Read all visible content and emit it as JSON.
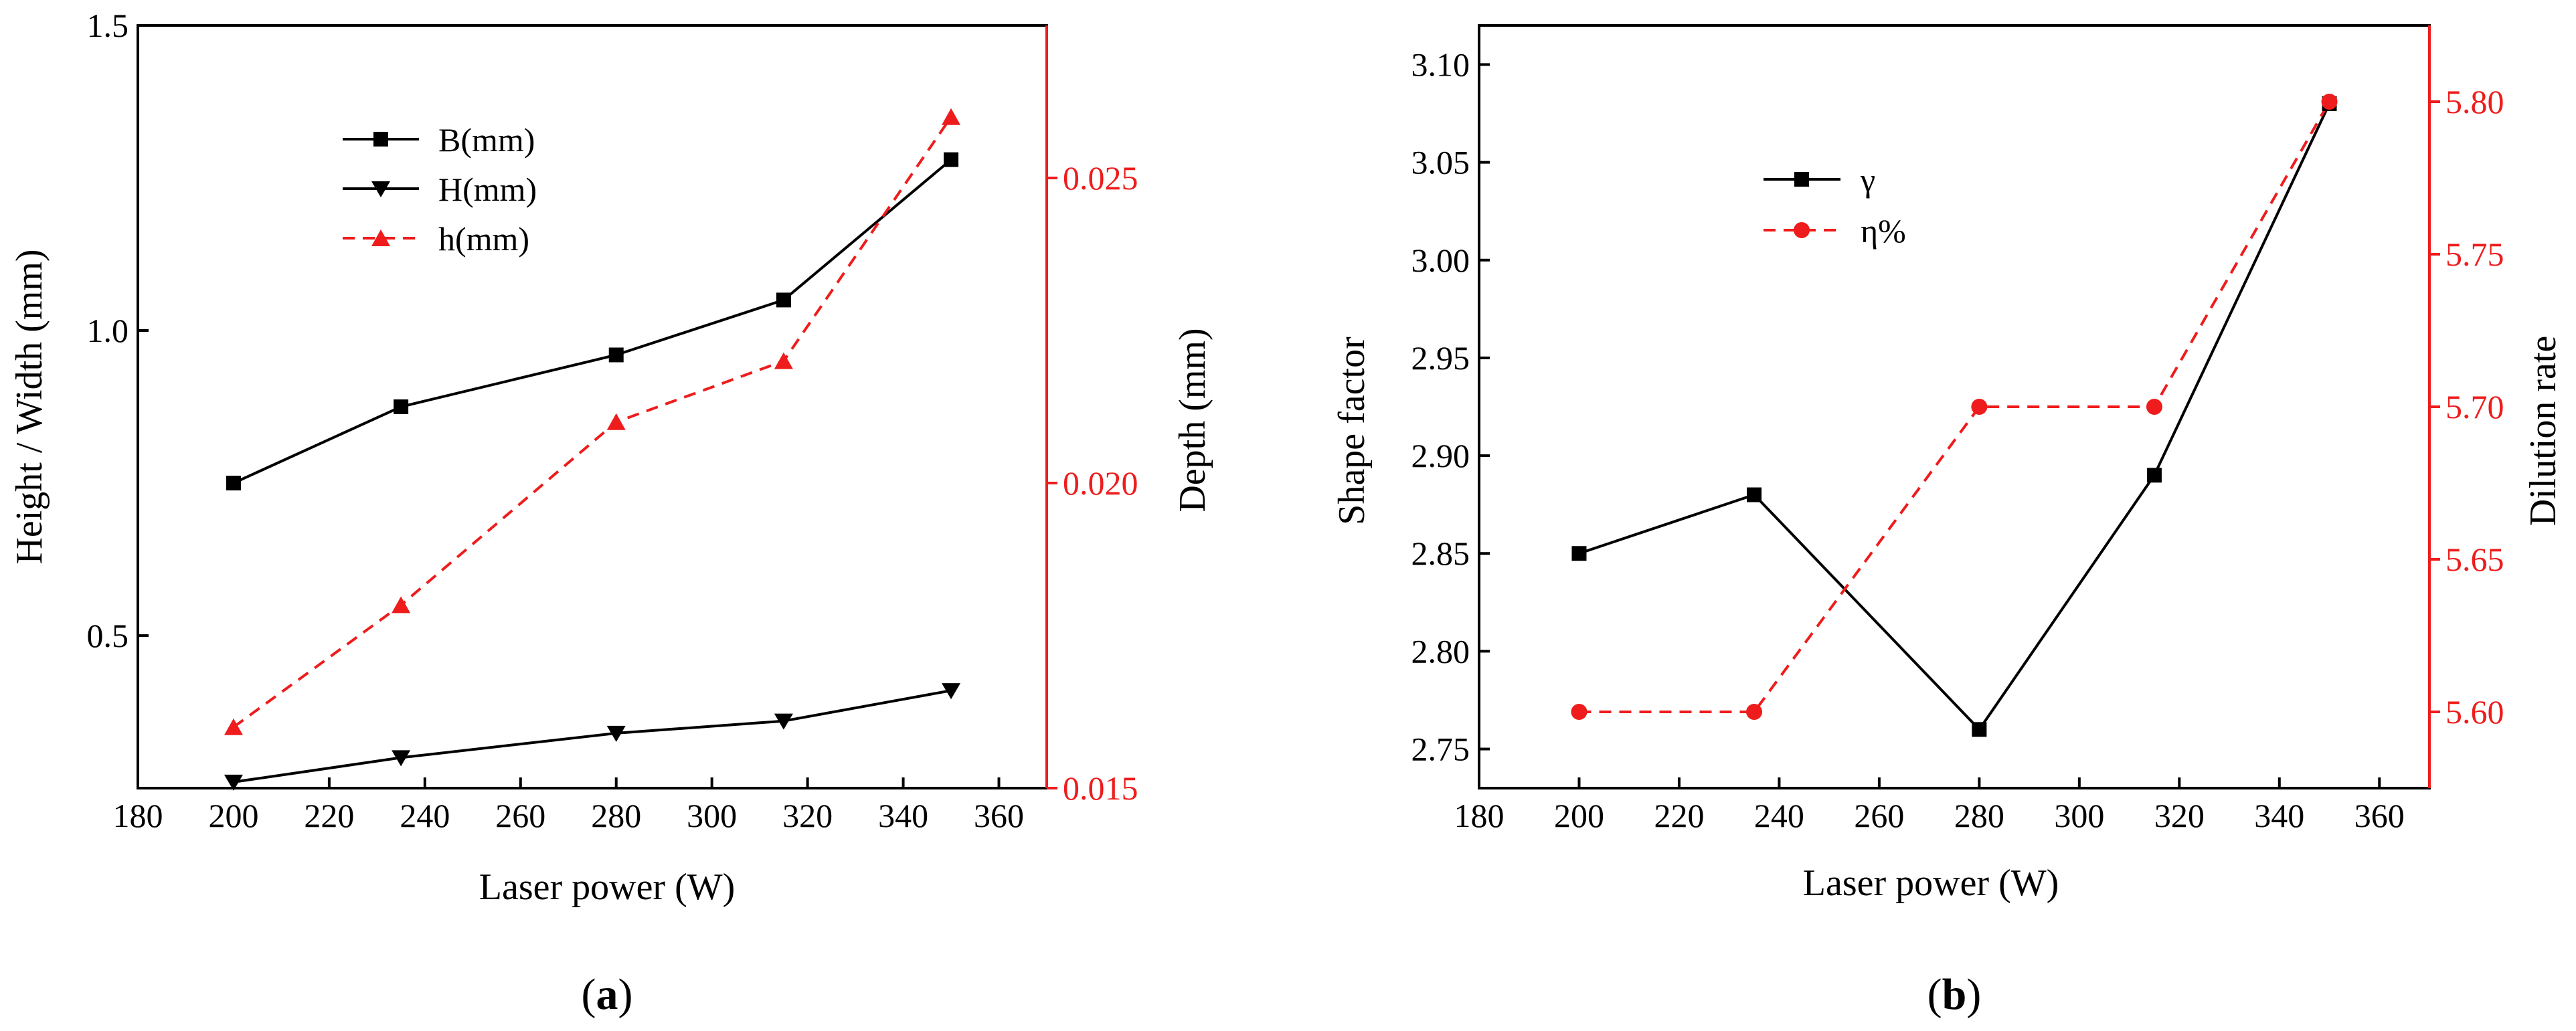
{
  "colors": {
    "black": "#000000",
    "red": "#ee1c1c"
  },
  "chart_data": [
    {
      "type": "line",
      "caption_open": "(",
      "caption_letter": "a",
      "caption_close": ")",
      "xlabel": "Laser power (W)",
      "ylabel_left": "Height / Width (mm)",
      "ylabel_right": "Depth (mm)",
      "xlim": [
        180,
        370
      ],
      "ylim_left": [
        0.25,
        1.5
      ],
      "ylim_right": [
        0.015,
        0.0275
      ],
      "xticks": [
        180,
        200,
        220,
        240,
        260,
        280,
        300,
        320,
        340,
        360
      ],
      "xtick_labels": [
        "180",
        "200",
        "220",
        "240",
        "260",
        "280",
        "300",
        "320",
        "340",
        "360"
      ],
      "yticks_left": [
        0.5,
        1.0,
        1.5
      ],
      "ytick_labels_left": [
        "0.5",
        "1.0",
        "1.5"
      ],
      "yticks_right": [
        0.015,
        0.02,
        0.025
      ],
      "ytick_labels_right": [
        "0.015",
        "0.020",
        "0.025"
      ],
      "x": [
        200,
        235,
        280,
        315,
        350
      ],
      "series": [
        {
          "name": "B(mm)",
          "axis": "left",
          "color": "#000000",
          "dashed": false,
          "marker": "square",
          "values": [
            0.75,
            0.875,
            0.96,
            1.05,
            1.28
          ]
        },
        {
          "name": "H(mm)",
          "axis": "left",
          "color": "#000000",
          "dashed": false,
          "marker": "triangle-down",
          "values": [
            0.26,
            0.3,
            0.34,
            0.36,
            0.41
          ]
        },
        {
          "name": "h(mm)",
          "axis": "right",
          "color": "#ee1c1c",
          "dashed": true,
          "marker": "triangle-up",
          "values": [
            0.016,
            0.018,
            0.021,
            0.022,
            0.026
          ]
        }
      ],
      "legend_position": "top-left"
    },
    {
      "type": "line",
      "caption_open": "(",
      "caption_letter": "b",
      "caption_close": ")",
      "xlabel": "Laser power (W)",
      "ylabel_left": "Shape factor",
      "ylabel_right": "Dilution rate",
      "xlim": [
        180,
        370
      ],
      "ylim_left": [
        2.73,
        3.12
      ],
      "ylim_right": [
        5.575,
        5.825
      ],
      "xticks": [
        180,
        200,
        220,
        240,
        260,
        280,
        300,
        320,
        340,
        360
      ],
      "xtick_labels": [
        "180",
        "200",
        "220",
        "240",
        "260",
        "280",
        "300",
        "320",
        "340",
        "360"
      ],
      "yticks_left": [
        2.75,
        2.8,
        2.85,
        2.9,
        2.95,
        3.0,
        3.05,
        3.1
      ],
      "ytick_labels_left": [
        "2.75",
        "2.80",
        "2.85",
        "2.90",
        "2.95",
        "3.00",
        "3.05",
        "3.10"
      ],
      "yticks_right": [
        5.6,
        5.65,
        5.7,
        5.75,
        5.8
      ],
      "ytick_labels_right": [
        "5.60",
        "5.65",
        "5.70",
        "5.75",
        "5.80"
      ],
      "x": [
        200,
        235,
        280,
        315,
        350
      ],
      "series": [
        {
          "name": "γ",
          "axis": "left",
          "color": "#000000",
          "dashed": false,
          "marker": "square",
          "values": [
            2.85,
            2.88,
            2.76,
            2.89,
            3.08
          ]
        },
        {
          "name": "η%",
          "axis": "right",
          "color": "#ee1c1c",
          "dashed": true,
          "marker": "circle",
          "values": [
            5.6,
            5.6,
            5.7,
            5.7,
            5.8
          ]
        }
      ],
      "legend_position": "top-left"
    }
  ]
}
